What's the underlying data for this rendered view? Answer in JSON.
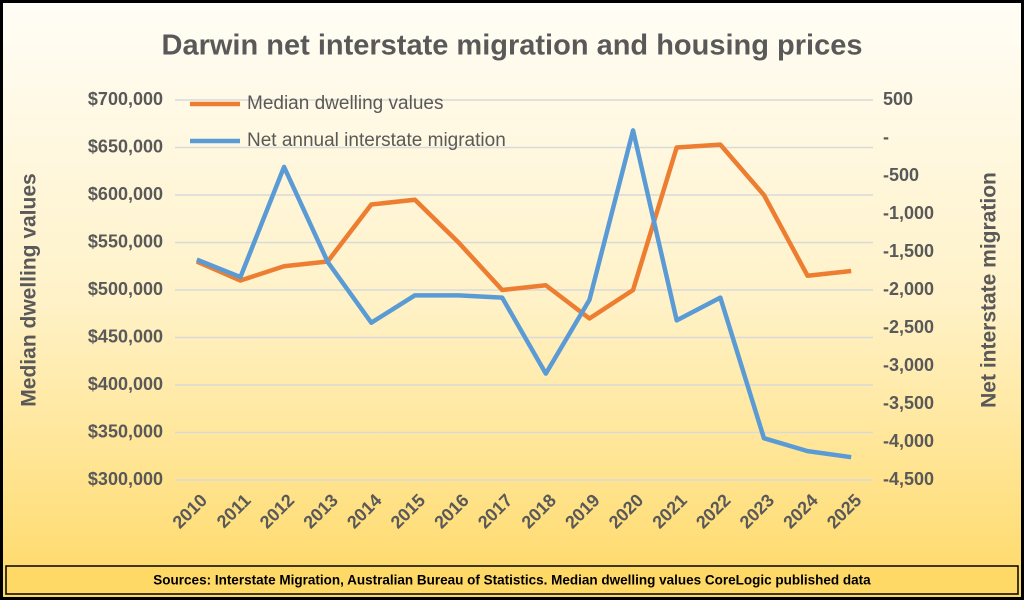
{
  "chart_data": {
    "type": "line",
    "title": "Darwin net interstate migration and housing prices",
    "y_label": "Median dwelling values",
    "y2_label": "Net interstate migration",
    "source": "Sources: Interstate Migration, Australian Bureau of Statistics. Median dwelling values CoreLogic published data",
    "categories": [
      "2010",
      "2011",
      "2012",
      "2013",
      "2014",
      "2015",
      "2016",
      "2017",
      "2018",
      "2019",
      "2020",
      "2021",
      "2022",
      "2023",
      "2024",
      "2025"
    ],
    "series": [
      {
        "name": "Median dwelling values",
        "color": "#ed7d31",
        "axis": "y",
        "values": [
          530000,
          510000,
          525000,
          530000,
          590000,
          595000,
          550000,
          500000,
          505000,
          470000,
          500000,
          650000,
          653000,
          600000,
          515000,
          520000
        ]
      },
      {
        "name": "Net annual interstate migration",
        "color": "#5b9bd5",
        "axis": "y2",
        "values": [
          -1600,
          -1830,
          -380,
          -1630,
          -2430,
          -2070,
          -2070,
          -2100,
          -3100,
          -2130,
          100,
          -2400,
          -2100,
          -3950,
          -4120,
          -4200
        ]
      }
    ],
    "ylim": [
      300000,
      700000
    ],
    "yticks": [
      {
        "value": 300000,
        "label": "$300,000"
      },
      {
        "value": 350000,
        "label": "$350,000"
      },
      {
        "value": 400000,
        "label": "$400,000"
      },
      {
        "value": 450000,
        "label": "$450,000"
      },
      {
        "value": 500000,
        "label": "$500,000"
      },
      {
        "value": 550000,
        "label": "$550,000"
      },
      {
        "value": 600000,
        "label": "$600,000"
      },
      {
        "value": 650000,
        "label": "$650,000"
      },
      {
        "value": 700000,
        "label": "$700,000"
      }
    ],
    "y2lim": [
      -4500,
      500
    ],
    "y2ticks": [
      {
        "value": -4500,
        "label": "-4,500"
      },
      {
        "value": -4000,
        "label": "-4,000"
      },
      {
        "value": -3500,
        "label": "-3,500"
      },
      {
        "value": -3000,
        "label": "-3,000"
      },
      {
        "value": -2500,
        "label": "-2,500"
      },
      {
        "value": -2000,
        "label": "-2,000"
      },
      {
        "value": -1500,
        "label": "-1,500"
      },
      {
        "value": -1000,
        "label": "-1,000"
      },
      -500,
      {
        "value": 0,
        "label": "-"
      },
      500
    ],
    "grid": true,
    "legend": "upper left"
  }
}
